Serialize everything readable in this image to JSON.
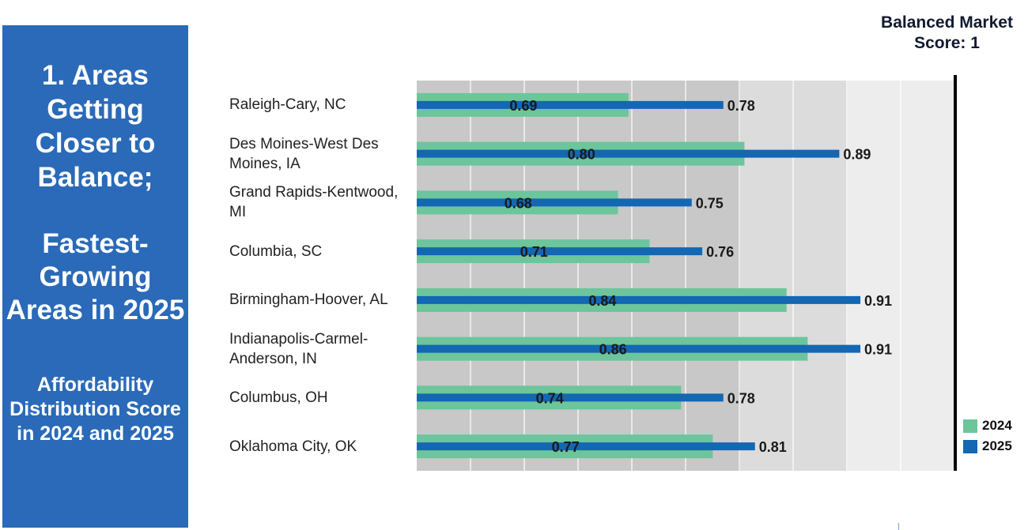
{
  "side_panel": {
    "heading_line1": "1. Areas Getting Closer to Balance;",
    "heading_line2": "Fastest-Growing Areas in 2025",
    "heading_line3": "Affordability Distribution Score in 2024 and 2025"
  },
  "chart_data": {
    "type": "bar",
    "orientation": "horizontal",
    "categories": [
      "Raleigh-Cary, NC",
      "Des Moines-West Des Moines, IA",
      "Grand Rapids-Kentwood, MI",
      "Columbia, SC",
      "Birmingham-Hoover, AL",
      "Indianapolis-Carmel-Anderson, IN",
      "Columbus, OH",
      "Oklahoma City, OK"
    ],
    "series": [
      {
        "name": "2024",
        "values": [
          0.69,
          0.8,
          0.68,
          0.71,
          0.84,
          0.86,
          0.74,
          0.77
        ],
        "color": "#6cc59b"
      },
      {
        "name": "2025",
        "values": [
          0.78,
          0.89,
          0.75,
          0.76,
          0.91,
          0.91,
          0.78,
          0.81
        ],
        "color": "#1367b3"
      }
    ],
    "value_labels_2024": [
      "0.69",
      "0.80",
      "0.68",
      "0.71",
      "0.84",
      "0.86",
      "0.74",
      "0.77"
    ],
    "value_labels_2025": [
      "0.78",
      "0.89",
      "0.75",
      "0.76",
      "0.91",
      "0.91",
      "0.78",
      "0.81"
    ],
    "xlim": [
      0,
      1
    ],
    "reference_line": {
      "value": 1.0,
      "label": "Balanced Market Score: 1"
    },
    "background_bands": [
      "#c8c8c8",
      "#dcdcdc",
      "#ededed"
    ],
    "legend_position": "bottom-right",
    "grid": true
  }
}
